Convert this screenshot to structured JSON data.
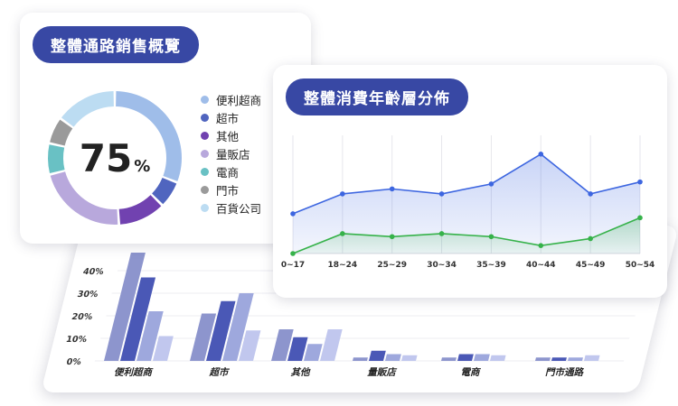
{
  "chart_data": [
    {
      "type": "bar",
      "categories": [
        "便利超商",
        "超市",
        "其他",
        "量販店",
        "電商",
        "門市通路"
      ],
      "series": [
        {
          "values": [
            48,
            21,
            14,
            1.5,
            1.5,
            1.5
          ]
        },
        {
          "values": [
            37,
            26.5,
            10.5,
            4.5,
            3,
            1.5
          ]
        },
        {
          "values": [
            22,
            30,
            7.5,
            3,
            3,
            1.5
          ]
        },
        {
          "values": [
            11,
            13.5,
            14,
            2.5,
            2.5,
            2.5
          ]
        }
      ],
      "yticks": [
        "0%",
        "10%",
        "20%",
        "30%",
        "40%"
      ],
      "ylim": [
        0,
        50
      ],
      "colors": [
        "#8d95cd",
        "#4a58b6",
        "#9ea8dd",
        "#c1c7ee"
      ]
    },
    {
      "type": "pie",
      "title": "整體通路銷售概覽",
      "center_value": "75",
      "center_unit": "%",
      "labels": [
        "便利超商",
        "超市",
        "其他",
        "量販店",
        "電商",
        "門市",
        "百貨公司"
      ],
      "values": [
        31,
        6.5,
        11.5,
        22,
        7.5,
        6.5,
        15
      ],
      "colors": [
        "#9fbde9",
        "#5065bf",
        "#7142b0",
        "#b8a8dc",
        "#69c1c4",
        "#9a9a9a",
        "#bcdcf2"
      ]
    },
    {
      "type": "line",
      "title": "整體消費年齡層分佈",
      "categories": [
        "0~17",
        "18~24",
        "25~29",
        "30~34",
        "35~39",
        "40~44",
        "45~49",
        "50~54"
      ],
      "series": [
        {
          "values": [
            20,
            30,
            32.5,
            30,
            35,
            50,
            30,
            36
          ],
          "color": "#3d66e0"
        },
        {
          "values": [
            0,
            10,
            8.5,
            10,
            8.5,
            4,
            7.5,
            18
          ],
          "color": "#36b24a"
        }
      ],
      "ylim": [
        0,
        54
      ]
    }
  ]
}
